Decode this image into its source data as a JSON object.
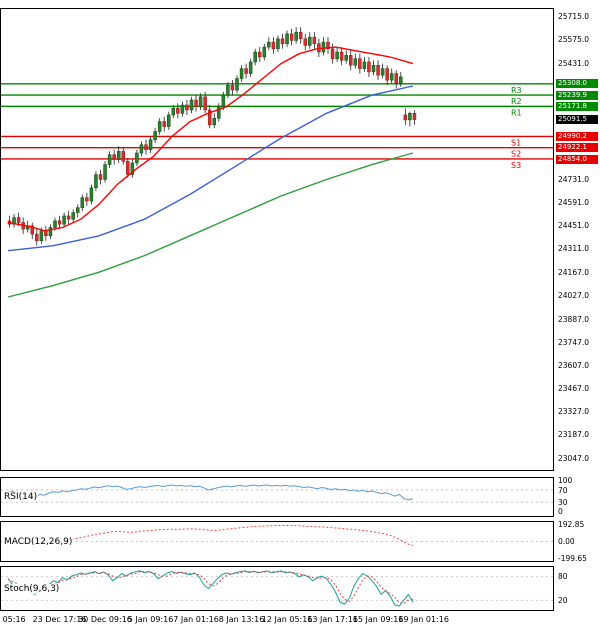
{
  "colors": {
    "up_candle": "#2e7d32",
    "up_candle_border": "#0a4d0a",
    "down_candle": "#d32f2f",
    "down_candle_border": "#8e1b1b",
    "wick": "#222222",
    "ma_fast": "#ff0000",
    "ma_mid": "#3b5fd9",
    "ma_slow": "#2e9e3a",
    "resistance": "#008a00",
    "support": "#e60000",
    "current_badge": "#000000",
    "rsi_line": "#5b9bd5",
    "macd_line": "#ff4444",
    "stoch_k": "#1a9e8f",
    "stoch_d": "#e04444",
    "guide": "#bbbbbb",
    "axis_text": "#000000"
  },
  "indicators": {
    "rsi": {
      "label": "RSI(14)",
      "axis": [
        "100",
        "70",
        "30",
        "0"
      ],
      "axis_values": [
        100,
        70,
        30,
        0
      ],
      "guides": [
        70,
        30
      ]
    },
    "macd": {
      "label": "MACD(12,26,9)",
      "axis": [
        "192.85",
        "0.00",
        "-199.65"
      ],
      "axis_values": [
        192.85,
        0,
        -199.65
      ],
      "guides": [
        0
      ]
    },
    "stoch": {
      "label": "Stoch(9,6,3)",
      "axis": [
        "80",
        "20"
      ],
      "axis_values": [
        80,
        20
      ],
      "guides": [
        80,
        20
      ]
    }
  },
  "chart_data": {
    "type": "candlestick",
    "ylim": [
      22975,
      25760
    ],
    "x0": 7,
    "dx": 4.55,
    "y_ticks": [
      "25715.0",
      "25575.0",
      "25431.0",
      "24731.0",
      "24591.0",
      "24451.0",
      "24311.0",
      "24167.0",
      "24027.0",
      "23887.0",
      "23747.0",
      "23607.0",
      "23467.0",
      "23327.0",
      "23187.0",
      "23047.0"
    ],
    "x_ticks": [
      {
        "text": "05:16",
        "i": 1
      },
      {
        "text": "23 Dec 17:16",
        "i": 11
      },
      {
        "text": "30 Dec 09:16",
        "i": 21
      },
      {
        "text": "5 Jan 09:16",
        "i": 31
      },
      {
        "text": "7 Jan 01:16",
        "i": 41
      },
      {
        "text": "8 Jan 13:16",
        "i": 51
      },
      {
        "text": "12 Jan 05:16",
        "i": 61
      },
      {
        "text": "13 Jan 17:16",
        "i": 71
      },
      {
        "text": "15 Jan 09:16",
        "i": 81
      },
      {
        "text": "19 Jan 01:16",
        "i": 91
      }
    ],
    "pivots": [
      {
        "label": "R3",
        "display": "25308.0",
        "value": 25308.0,
        "kind": "resistance"
      },
      {
        "label": "R2",
        "display": "25239.9",
        "value": 25239.9,
        "kind": "resistance"
      },
      {
        "label": "R1",
        "display": "25171.8",
        "value": 25171.8,
        "kind": "resistance"
      },
      {
        "label": "S1",
        "display": "24990.2",
        "value": 24990.2,
        "kind": "support"
      },
      {
        "label": "S2",
        "display": "24922.1",
        "value": 24922.1,
        "kind": "support"
      },
      {
        "label": "S3",
        "display": "24854.0",
        "value": 24854.0,
        "kind": "support"
      }
    ],
    "current_price": {
      "display": "25091.5",
      "value": 25091.5
    },
    "candles": [
      [
        24480,
        24510,
        24440,
        24460
      ],
      [
        24460,
        24520,
        24440,
        24500
      ],
      [
        24500,
        24530,
        24450,
        24470
      ],
      [
        24470,
        24500,
        24400,
        24430
      ],
      [
        24430,
        24480,
        24410,
        24450
      ],
      [
        24450,
        24470,
        24370,
        24400
      ],
      [
        24400,
        24430,
        24330,
        24360
      ],
      [
        24360,
        24440,
        24340,
        24420
      ],
      [
        24420,
        24450,
        24360,
        24390
      ],
      [
        24390,
        24460,
        24370,
        24440
      ],
      [
        24440,
        24500,
        24420,
        24480
      ],
      [
        24480,
        24510,
        24430,
        24460
      ],
      [
        24460,
        24530,
        24440,
        24510
      ],
      [
        24510,
        24540,
        24460,
        24490
      ],
      [
        24490,
        24550,
        24470,
        24530
      ],
      [
        24530,
        24580,
        24500,
        24560
      ],
      [
        24560,
        24640,
        24540,
        24620
      ],
      [
        24620,
        24650,
        24570,
        24600
      ],
      [
        24600,
        24700,
        24580,
        24680
      ],
      [
        24680,
        24780,
        24660,
        24760
      ],
      [
        24760,
        24790,
        24700,
        24730
      ],
      [
        24730,
        24840,
        24710,
        24820
      ],
      [
        24820,
        24900,
        24800,
        24880
      ],
      [
        24880,
        24910,
        24820,
        24850
      ],
      [
        24850,
        24930,
        24830,
        24900
      ],
      [
        24900,
        24920,
        24820,
        24840
      ],
      [
        24840,
        24860,
        24740,
        24760
      ],
      [
        24760,
        24850,
        24740,
        24830
      ],
      [
        24830,
        24910,
        24810,
        24890
      ],
      [
        24890,
        24960,
        24870,
        24940
      ],
      [
        24940,
        24970,
        24880,
        24910
      ],
      [
        24910,
        24990,
        24890,
        24970
      ],
      [
        24970,
        25040,
        24950,
        25020
      ],
      [
        25020,
        25100,
        25000,
        25080
      ],
      [
        25080,
        25110,
        25020,
        25050
      ],
      [
        25050,
        25140,
        25030,
        25120
      ],
      [
        25120,
        25180,
        25100,
        25160
      ],
      [
        25160,
        25190,
        25100,
        25130
      ],
      [
        25130,
        25200,
        25110,
        25180
      ],
      [
        25180,
        25210,
        25120,
        25150
      ],
      [
        25150,
        25230,
        25130,
        25210
      ],
      [
        25210,
        25240,
        25140,
        25170
      ],
      [
        25170,
        25250,
        25150,
        25230
      ],
      [
        25230,
        25260,
        25130,
        25150
      ],
      [
        25150,
        25180,
        25040,
        25060
      ],
      [
        25060,
        25130,
        25040,
        25100
      ],
      [
        25100,
        25190,
        25080,
        25170
      ],
      [
        25170,
        25260,
        25150,
        25240
      ],
      [
        25240,
        25320,
        25220,
        25300
      ],
      [
        25300,
        25330,
        25240,
        25270
      ],
      [
        25270,
        25360,
        25250,
        25340
      ],
      [
        25340,
        25420,
        25320,
        25400
      ],
      [
        25400,
        25430,
        25340,
        25370
      ],
      [
        25370,
        25460,
        25350,
        25440
      ],
      [
        25440,
        25520,
        25420,
        25500
      ],
      [
        25500,
        25530,
        25440,
        25470
      ],
      [
        25470,
        25550,
        25450,
        25530
      ],
      [
        25530,
        25590,
        25510,
        25560
      ],
      [
        25560,
        25590,
        25490,
        25520
      ],
      [
        25520,
        25600,
        25500,
        25580
      ],
      [
        25580,
        25610,
        25520,
        25550
      ],
      [
        25550,
        25630,
        25530,
        25610
      ],
      [
        25610,
        25640,
        25540,
        25570
      ],
      [
        25570,
        25650,
        25550,
        25620
      ],
      [
        25620,
        25650,
        25550,
        25580
      ],
      [
        25580,
        25610,
        25510,
        25540
      ],
      [
        25540,
        25620,
        25520,
        25590
      ],
      [
        25590,
        25620,
        25520,
        25550
      ],
      [
        25550,
        25580,
        25470,
        25500
      ],
      [
        25500,
        25590,
        25480,
        25560
      ],
      [
        25560,
        25590,
        25490,
        25520
      ],
      [
        25520,
        25550,
        25430,
        25460
      ],
      [
        25460,
        25530,
        25440,
        25500
      ],
      [
        25500,
        25530,
        25420,
        25450
      ],
      [
        25450,
        25510,
        25430,
        25480
      ],
      [
        25480,
        25510,
        25390,
        25420
      ],
      [
        25420,
        25490,
        25400,
        25460
      ],
      [
        25460,
        25490,
        25370,
        25400
      ],
      [
        25400,
        25470,
        25380,
        25440
      ],
      [
        25440,
        25470,
        25350,
        25380
      ],
      [
        25380,
        25450,
        25360,
        25420
      ],
      [
        25420,
        25450,
        25330,
        25360
      ],
      [
        25360,
        25430,
        25340,
        25400
      ],
      [
        25400,
        25420,
        25300,
        25330
      ],
      [
        25330,
        25400,
        25310,
        25370
      ],
      [
        25370,
        25390,
        25280,
        25310
      ],
      [
        25310,
        25380,
        25290,
        25350
      ],
      [
        25120,
        25160,
        25060,
        25090
      ],
      [
        25090,
        25140,
        25050,
        25130
      ],
      [
        25130,
        25150,
        25060,
        25092
      ]
    ],
    "overlays": [
      {
        "name": "ma-fast",
        "color_key": "ma_fast",
        "anchors": [
          [
            0,
            24470
          ],
          [
            5,
            24445
          ],
          [
            8,
            24420
          ],
          [
            12,
            24440
          ],
          [
            16,
            24490
          ],
          [
            20,
            24580
          ],
          [
            24,
            24700
          ],
          [
            28,
            24790
          ],
          [
            32,
            24870
          ],
          [
            36,
            24990
          ],
          [
            40,
            25080
          ],
          [
            44,
            25130
          ],
          [
            48,
            25170
          ],
          [
            52,
            25250
          ],
          [
            56,
            25340
          ],
          [
            60,
            25430
          ],
          [
            64,
            25490
          ],
          [
            68,
            25520
          ],
          [
            72,
            25530
          ],
          [
            76,
            25510
          ],
          [
            80,
            25490
          ],
          [
            84,
            25470
          ],
          [
            89,
            25430
          ]
        ]
      },
      {
        "name": "ma-mid",
        "color_key": "ma_mid",
        "anchors": [
          [
            0,
            24300
          ],
          [
            10,
            24330
          ],
          [
            20,
            24390
          ],
          [
            30,
            24490
          ],
          [
            40,
            24640
          ],
          [
            50,
            24810
          ],
          [
            60,
            24980
          ],
          [
            70,
            25130
          ],
          [
            80,
            25240
          ],
          [
            89,
            25295
          ]
        ]
      },
      {
        "name": "ma-slow",
        "color_key": "ma_slow",
        "anchors": [
          [
            0,
            24020
          ],
          [
            10,
            24090
          ],
          [
            20,
            24170
          ],
          [
            30,
            24270
          ],
          [
            40,
            24390
          ],
          [
            50,
            24510
          ],
          [
            60,
            24630
          ],
          [
            70,
            24730
          ],
          [
            80,
            24820
          ],
          [
            89,
            24890
          ]
        ]
      }
    ],
    "indicators": {
      "rsi": {
        "ylim": [
          -15,
          109
        ],
        "values": [
          62,
          65,
          60,
          55,
          58,
          52,
          48,
          55,
          53,
          60,
          64,
          62,
          67,
          64,
          68,
          70,
          74,
          72,
          76,
          80,
          77,
          81,
          84,
          81,
          83,
          78,
          72,
          74,
          78,
          81,
          78,
          81,
          83,
          85,
          81,
          84,
          86,
          83,
          85,
          82,
          84,
          81,
          83,
          77,
          70,
          73,
          77,
          80,
          83,
          80,
          83,
          85,
          82,
          84,
          86,
          83,
          85,
          86,
          83,
          85,
          83,
          85,
          82,
          84,
          81,
          78,
          80,
          77,
          74,
          78,
          75,
          71,
          74,
          70,
          72,
          67,
          70,
          66,
          69,
          64,
          67,
          62,
          58,
          61,
          56,
          50,
          55,
          42,
          38,
          41
        ]
      },
      "macd": {
        "ylim": [
          -225,
          225
        ],
        "values": [
          5,
          8,
          2,
          -5,
          -8,
          -15,
          -20,
          -15,
          -10,
          -5,
          0,
          5,
          10,
          18,
          25,
          33,
          45,
          55,
          68,
          80,
          88,
          95,
          105,
          112,
          118,
          115,
          108,
          105,
          110,
          118,
          122,
          126,
          130,
          135,
          138,
          140,
          142,
          140,
          142,
          144,
          146,
          144,
          142,
          138,
          132,
          128,
          130,
          135,
          142,
          148,
          152,
          158,
          163,
          168,
          172,
          175,
          178,
          180,
          182,
          183,
          184,
          185,
          183,
          184,
          182,
          178,
          175,
          172,
          170,
          168,
          165,
          160,
          156,
          152,
          148,
          143,
          138,
          133,
          128,
          122,
          115,
          105,
          95,
          85,
          70,
          50,
          25,
          -5,
          -30,
          -45
        ]
      },
      "stoch": {
        "ylim": [
          -5,
          105
        ],
        "k": [
          75,
          60,
          50,
          45,
          55,
          40,
          35,
          50,
          45,
          60,
          70,
          65,
          78,
          72,
          82,
          85,
          90,
          86,
          90,
          93,
          88,
          92,
          85,
          70,
          78,
          88,
          82,
          90,
          93,
          95,
          90,
          93,
          88,
          75,
          82,
          90,
          93,
          89,
          92,
          88,
          85,
          90,
          80,
          60,
          50,
          62,
          75,
          85,
          90,
          86,
          90,
          93,
          95,
          91,
          94,
          90,
          93,
          95,
          90,
          93,
          95,
          90,
          92,
          88,
          80,
          85,
          80,
          70,
          78,
          82,
          75,
          60,
          40,
          15,
          10,
          25,
          55,
          75,
          88,
          82,
          70,
          55,
          35,
          45,
          30,
          8,
          5,
          20,
          35,
          15
        ],
        "d": [
          75,
          68,
          62,
          52,
          50,
          47,
          43,
          42,
          43,
          52,
          58,
          65,
          71,
          72,
          77,
          80,
          86,
          87,
          89,
          90,
          90,
          91,
          88,
          82,
          78,
          79,
          83,
          87,
          88,
          93,
          93,
          93,
          90,
          85,
          82,
          82,
          88,
          91,
          91,
          90,
          88,
          88,
          85,
          77,
          63,
          57,
          62,
          74,
          83,
          87,
          89,
          90,
          93,
          93,
          93,
          92,
          92,
          93,
          93,
          92,
          93,
          93,
          92,
          90,
          87,
          84,
          82,
          78,
          76,
          77,
          78,
          72,
          58,
          38,
          22,
          17,
          30,
          52,
          73,
          82,
          80,
          69,
          53,
          45,
          37,
          28,
          14,
          11,
          20,
          23
        ]
      }
    }
  }
}
